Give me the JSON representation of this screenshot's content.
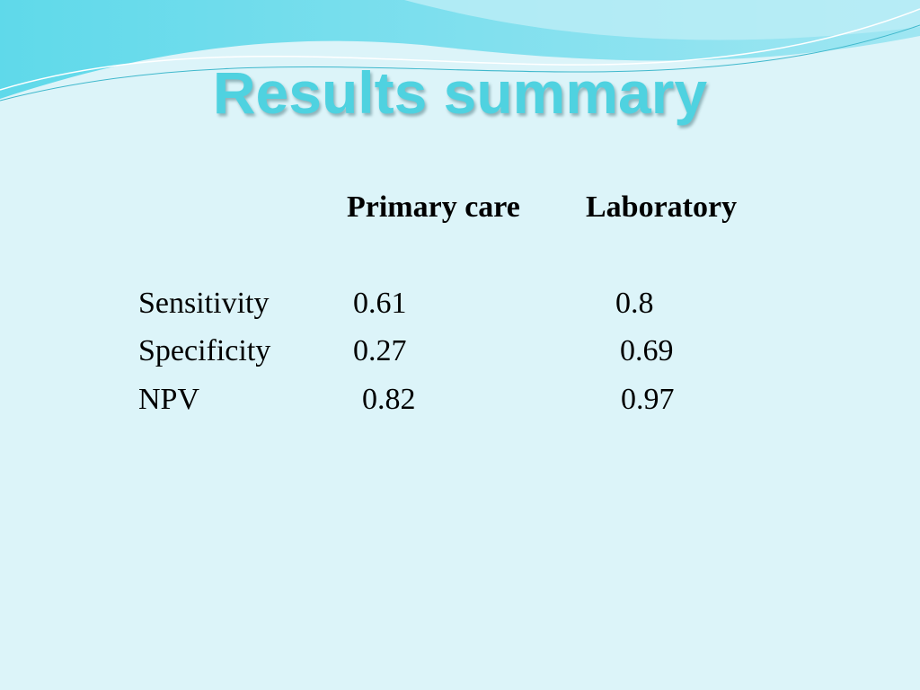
{
  "header": {
    "title": "Results summary"
  },
  "table": {
    "columns": [
      "Primary care",
      "Laboratory"
    ],
    "rows": [
      [
        "Sensitivity",
        0.61,
        0.8
      ],
      [
        "Specificity",
        0.27,
        0.69
      ],
      [
        "NPV",
        0.82,
        0.97
      ]
    ]
  }
}
